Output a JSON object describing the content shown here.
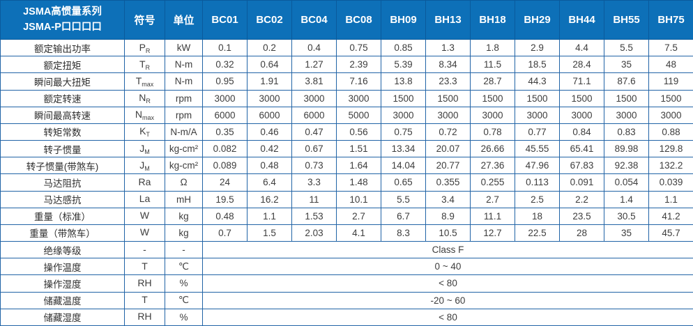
{
  "header": {
    "series_line1": "JSMA高惯量系列",
    "series_line2": "JSMA-P口口口口",
    "symbol_col": "符号",
    "unit_col": "单位",
    "models": [
      "BC01",
      "BC02",
      "BC04",
      "BC08",
      "BH09",
      "BH13",
      "BH18",
      "BH29",
      "BH44",
      "BH55",
      "BH75"
    ]
  },
  "rows": [
    {
      "label": "额定输出功率",
      "symbol": {
        "main": "P",
        "sub": "R"
      },
      "unit": "kW",
      "values": [
        "0.1",
        "0.2",
        "0.4",
        "0.75",
        "0.85",
        "1.3",
        "1.8",
        "2.9",
        "4.4",
        "5.5",
        "7.5"
      ]
    },
    {
      "label": "额定扭矩",
      "symbol": {
        "main": "T",
        "sub": "R"
      },
      "unit": "N-m",
      "values": [
        "0.32",
        "0.64",
        "1.27",
        "2.39",
        "5.39",
        "8.34",
        "11.5",
        "18.5",
        "28.4",
        "35",
        "48"
      ]
    },
    {
      "label": "瞬间最大扭矩",
      "symbol": {
        "main": "T",
        "sub": "max"
      },
      "unit": "N-m",
      "values": [
        "0.95",
        "1.91",
        "3.81",
        "7.16",
        "13.8",
        "23.3",
        "28.7",
        "44.3",
        "71.1",
        "87.6",
        "119"
      ]
    },
    {
      "label": "额定转速",
      "symbol": {
        "main": "N",
        "sub": "R"
      },
      "unit": "rpm",
      "values": [
        "3000",
        "3000",
        "3000",
        "3000",
        "1500",
        "1500",
        "1500",
        "1500",
        "1500",
        "1500",
        "1500"
      ]
    },
    {
      "label": "瞬间最高转速",
      "symbol": {
        "main": "N",
        "sub": "max"
      },
      "unit": "rpm",
      "values": [
        "6000",
        "6000",
        "6000",
        "5000",
        "3000",
        "3000",
        "3000",
        "3000",
        "3000",
        "3000",
        "3000"
      ]
    },
    {
      "label": "转矩常数",
      "symbol": {
        "main": "K",
        "sub": "T"
      },
      "unit": "N-m/A",
      "values": [
        "0.35",
        "0.46",
        "0.47",
        "0.56",
        "0.75",
        "0.72",
        "0.78",
        "0.77",
        "0.84",
        "0.83",
        "0.88"
      ]
    },
    {
      "label": "转子惯量",
      "symbol": {
        "main": "J",
        "sub": "M"
      },
      "unit": "kg-cm²",
      "values": [
        "0.082",
        "0.42",
        "0.67",
        "1.51",
        "13.34",
        "20.07",
        "26.66",
        "45.55",
        "65.41",
        "89.98",
        "129.8"
      ]
    },
    {
      "label": "转子惯量(带煞车)",
      "symbol": {
        "main": "J",
        "sub": "M"
      },
      "unit": "kg-cm²",
      "values": [
        "0.089",
        "0.48",
        "0.73",
        "1.64",
        "14.04",
        "20.77",
        "27.36",
        "47.96",
        "67.83",
        "92.38",
        "132.2"
      ]
    },
    {
      "label": "马达阻抗",
      "symbol": {
        "main": "Ra",
        "sub": ""
      },
      "unit": "Ω",
      "values": [
        "24",
        "6.4",
        "3.3",
        "1.48",
        "0.65",
        "0.355",
        "0.255",
        "0.113",
        "0.091",
        "0.054",
        "0.039"
      ]
    },
    {
      "label": "马达感抗",
      "symbol": {
        "main": "La",
        "sub": ""
      },
      "unit": "mH",
      "values": [
        "19.5",
        "16.2",
        "11",
        "10.1",
        "5.5",
        "3.4",
        "2.7",
        "2.5",
        "2.2",
        "1.4",
        "1.1"
      ]
    },
    {
      "label": "重量（标准）",
      "symbol": {
        "main": "W",
        "sub": ""
      },
      "unit": "kg",
      "values": [
        "0.48",
        "1.1",
        "1.53",
        "2.7",
        "6.7",
        "8.9",
        "11.1",
        "18",
        "23.5",
        "30.5",
        "41.2"
      ]
    },
    {
      "label": "重量（带煞车）",
      "symbol": {
        "main": "W",
        "sub": ""
      },
      "unit": "kg",
      "values": [
        "0.7",
        "1.5",
        "2.03",
        "4.1",
        "8.3",
        "10.5",
        "12.7",
        "22.5",
        "28",
        "35",
        "45.7"
      ]
    },
    {
      "label": "绝缘等级",
      "symbol": {
        "main": "-",
        "sub": ""
      },
      "unit": "-",
      "span": "Class F"
    },
    {
      "label": "操作温度",
      "symbol": {
        "main": "T",
        "sub": ""
      },
      "unit": "℃",
      "span": "0 ~ 40"
    },
    {
      "label": "操作湿度",
      "symbol": {
        "main": "RH",
        "sub": ""
      },
      "unit": "%",
      "span": "< 80"
    },
    {
      "label": "储藏温度",
      "symbol": {
        "main": "T",
        "sub": ""
      },
      "unit": "℃",
      "span": "-20 ~ 60"
    },
    {
      "label": "储藏湿度",
      "symbol": {
        "main": "RH",
        "sub": ""
      },
      "unit": "%",
      "span": "< 80"
    }
  ],
  "colors": {
    "header_bg": "#0d70b8",
    "header_divider": "#0a5a9c",
    "grid_border": "#2063a6",
    "text": "#3d3d3d",
    "header_text": "#ffffff"
  }
}
